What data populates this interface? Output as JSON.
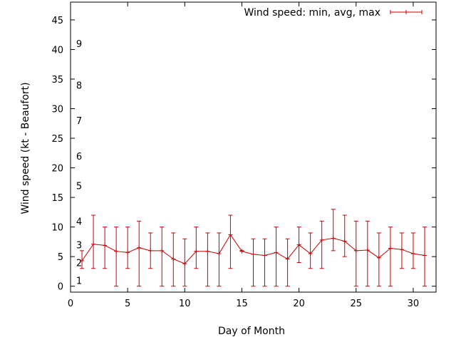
{
  "chart_data": {
    "type": "line",
    "title": "",
    "xlabel": "Day of Month",
    "ylabel": "Wind speed (kt - Beaufort)",
    "xlim": [
      0,
      32
    ],
    "ylim": [
      -1,
      48
    ],
    "x_ticks": [
      0,
      5,
      10,
      15,
      20,
      25,
      30
    ],
    "y_ticks": [
      0,
      5,
      10,
      15,
      20,
      25,
      30,
      35,
      40,
      45
    ],
    "grid": false,
    "legend_position": "top-right",
    "series": [
      {
        "name": "Wind speed: min, avg, max",
        "color": "#cc0000",
        "x": [
          1,
          2,
          3,
          4,
          5,
          6,
          7,
          8,
          9,
          10,
          11,
          12,
          13,
          14,
          15,
          16,
          17,
          18,
          19,
          20,
          21,
          22,
          23,
          24,
          25,
          26,
          27,
          28,
          29,
          30,
          31
        ],
        "avg": [
          4.3,
          7.1,
          6.9,
          5.9,
          5.7,
          6.5,
          6.0,
          6.0,
          4.6,
          3.8,
          5.9,
          5.9,
          5.5,
          8.7,
          5.9,
          5.4,
          5.2,
          5.7,
          4.6,
          7.0,
          5.5,
          7.8,
          8.1,
          7.6,
          6.0,
          6.1,
          4.8,
          6.4,
          6.2,
          5.5,
          5.2
        ],
        "min": [
          3,
          3,
          3,
          0,
          3,
          0,
          3,
          0,
          0,
          0,
          3,
          0,
          0,
          3,
          6,
          0,
          0,
          0,
          0,
          4,
          3,
          3,
          6,
          5,
          0,
          0,
          0,
          0,
          3,
          3,
          0
        ],
        "max": [
          6,
          12,
          10,
          10,
          10,
          11,
          9,
          10,
          9,
          8,
          10,
          9,
          9,
          12,
          6,
          8,
          8,
          10,
          8,
          10,
          9,
          11,
          13,
          12,
          11,
          11,
          9,
          10,
          9,
          9,
          10
        ]
      }
    ],
    "annotations": [
      {
        "text": "1",
        "y": 1.0
      },
      {
        "text": "2",
        "y": 4.0
      },
      {
        "text": "3",
        "y": 7.0
      },
      {
        "text": "4",
        "y": 11.0
      },
      {
        "text": "5",
        "y": 17.0
      },
      {
        "text": "6",
        "y": 22.0
      },
      {
        "text": "7",
        "y": 28.0
      },
      {
        "text": "8",
        "y": 34.0
      },
      {
        "text": "9",
        "y": 41.0
      }
    ]
  }
}
